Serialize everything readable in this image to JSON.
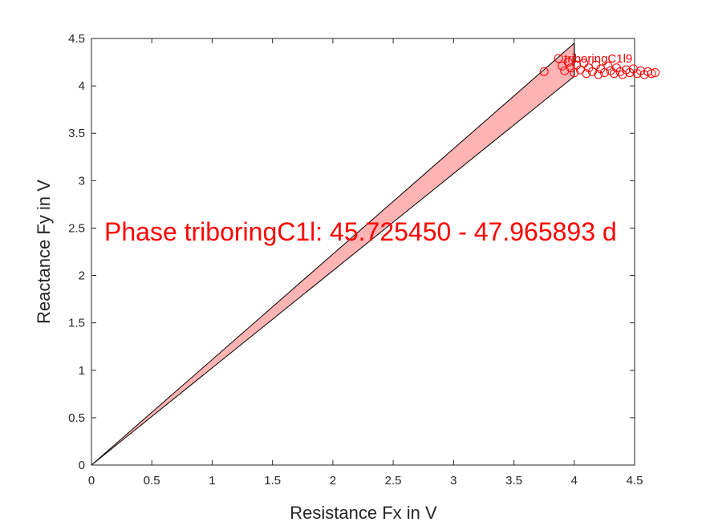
{
  "chart_data": {
    "type": "scatter",
    "xlabel": "Resistance Fx in V",
    "ylabel": "Reactance Fy in V",
    "xlim": [
      0,
      4.5
    ],
    "ylim": [
      0,
      4.5
    ],
    "xticks": [
      "0",
      "0.5",
      "1",
      "1.5",
      "2",
      "2.5",
      "3",
      "3.5",
      "4",
      "4.5"
    ],
    "yticks": [
      "0",
      "0.5",
      "1",
      "1.5",
      "2",
      "2.5",
      "3",
      "3.5",
      "4",
      "4.5"
    ],
    "grid": false,
    "colors": {
      "accent": "#ff0000",
      "band_fill": "#ffb3b3",
      "band_edge": "#000000",
      "axis": "#262626"
    },
    "band": {
      "polygon": [
        [
          0,
          0
        ],
        [
          4.0,
          4.45
        ],
        [
          4.0,
          4.1
        ]
      ],
      "divider": [
        [
          4.0,
          4.1
        ],
        [
          4.0,
          4.45
        ]
      ]
    },
    "annotation": "Phase triboringC1l: 45.725450 - 47.965893 d",
    "points": [
      {
        "x": 3.75,
        "y": 4.15,
        "label": ""
      },
      {
        "x": 3.87,
        "y": 4.29,
        "label": "triboringC1l9"
      },
      {
        "x": 3.9,
        "y": 4.21,
        "label": ""
      },
      {
        "x": 3.92,
        "y": 4.16,
        "label": ""
      },
      {
        "x": 3.95,
        "y": 4.25,
        "label": ""
      },
      {
        "x": 3.97,
        "y": 4.19,
        "label": ""
      },
      {
        "x": 4.0,
        "y": 4.14,
        "label": ""
      },
      {
        "x": 4.02,
        "y": 4.22,
        "label": ""
      },
      {
        "x": 4.05,
        "y": 4.17,
        "label": ""
      },
      {
        "x": 4.08,
        "y": 4.24,
        "label": ""
      },
      {
        "x": 4.1,
        "y": 4.13,
        "label": ""
      },
      {
        "x": 4.12,
        "y": 4.19,
        "label": ""
      },
      {
        "x": 4.15,
        "y": 4.15,
        "label": ""
      },
      {
        "x": 4.18,
        "y": 4.22,
        "label": ""
      },
      {
        "x": 4.2,
        "y": 4.12,
        "label": ""
      },
      {
        "x": 4.22,
        "y": 4.18,
        "label": ""
      },
      {
        "x": 4.25,
        "y": 4.14,
        "label": ""
      },
      {
        "x": 4.28,
        "y": 4.21,
        "label": ""
      },
      {
        "x": 4.3,
        "y": 4.16,
        "label": ""
      },
      {
        "x": 4.33,
        "y": 4.13,
        "label": ""
      },
      {
        "x": 4.35,
        "y": 4.19,
        "label": ""
      },
      {
        "x": 4.38,
        "y": 4.15,
        "label": ""
      },
      {
        "x": 4.4,
        "y": 4.12,
        "label": ""
      },
      {
        "x": 4.43,
        "y": 4.17,
        "label": ""
      },
      {
        "x": 4.46,
        "y": 4.14,
        "label": ""
      },
      {
        "x": 4.49,
        "y": 4.18,
        "label": ""
      },
      {
        "x": 4.52,
        "y": 4.13,
        "label": ""
      },
      {
        "x": 4.55,
        "y": 4.16,
        "label": ""
      },
      {
        "x": 4.58,
        "y": 4.12,
        "label": ""
      },
      {
        "x": 4.61,
        "y": 4.15,
        "label": ""
      },
      {
        "x": 4.64,
        "y": 4.13,
        "label": ""
      },
      {
        "x": 4.67,
        "y": 4.14,
        "label": ""
      }
    ]
  }
}
